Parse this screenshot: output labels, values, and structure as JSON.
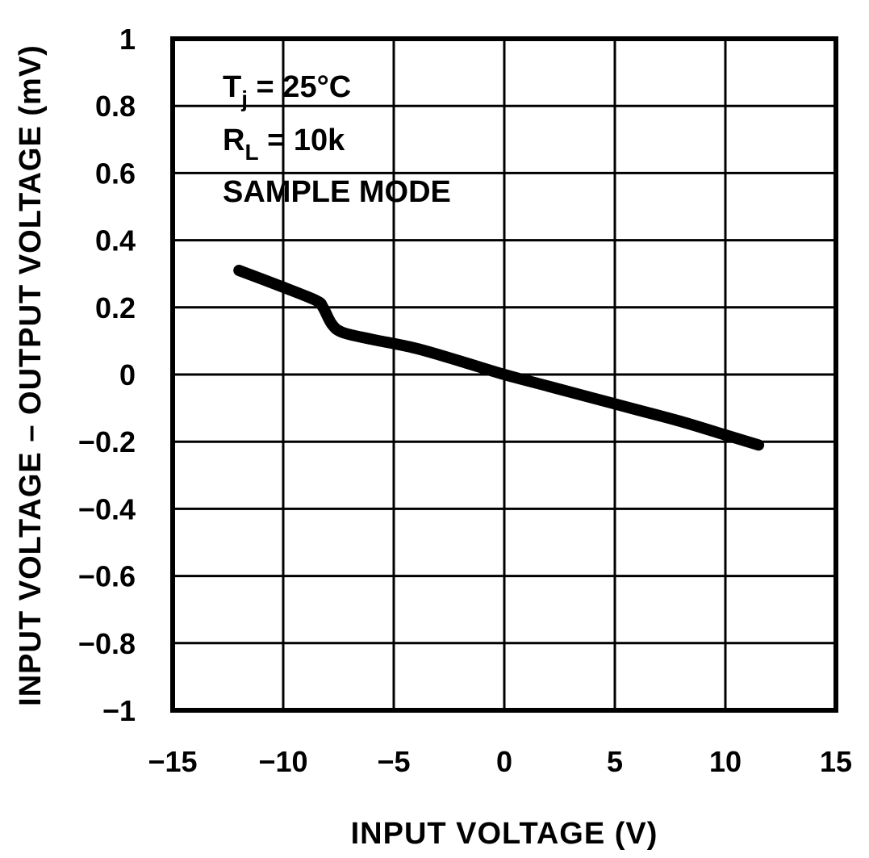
{
  "chart_data": {
    "type": "line",
    "title": "",
    "xlabel": "INPUT VOLTAGE (V)",
    "ylabel": "INPUT VOLTAGE – OUTPUT VOLTAGE (mV)",
    "xlim": [
      -15,
      15
    ],
    "ylim": [
      -1,
      1
    ],
    "x_ticks": [
      -15,
      -10,
      -5,
      0,
      5,
      10,
      15
    ],
    "x_tick_labels": [
      "−15",
      "−10",
      "−5",
      "0",
      "5",
      "10",
      "15"
    ],
    "y_ticks": [
      1,
      0.8,
      0.6,
      0.4,
      0.2,
      0,
      -0.2,
      -0.4,
      -0.6,
      -0.8,
      -1
    ],
    "y_tick_labels": [
      "1",
      "0.8",
      "0.6",
      "0.4",
      "0.2",
      "0",
      "−0.2",
      "−0.4",
      "−0.6",
      "−0.8",
      "−1"
    ],
    "grid": true,
    "legend": null,
    "annotations": [
      {
        "text": "Tj = 25°C",
        "main": "T",
        "sub": "j",
        "rest": " = 25°C"
      },
      {
        "text": "RL = 10k",
        "main": "R",
        "sub": "L",
        "rest": " = 10k"
      },
      {
        "text": "SAMPLE MODE"
      }
    ],
    "series": [
      {
        "name": "Tj = 25°C, RL = 10k, Sample Mode",
        "x": [
          -12,
          -10,
          -8.5,
          -8.2,
          -7.8,
          -7.3,
          -6,
          -4,
          -2,
          0,
          2,
          4,
          6,
          8,
          10,
          11.5
        ],
        "y": [
          0.31,
          0.26,
          0.22,
          0.2,
          0.15,
          0.125,
          0.105,
          0.078,
          0.04,
          0.0,
          -0.035,
          -0.07,
          -0.105,
          -0.14,
          -0.18,
          -0.21
        ]
      }
    ]
  }
}
